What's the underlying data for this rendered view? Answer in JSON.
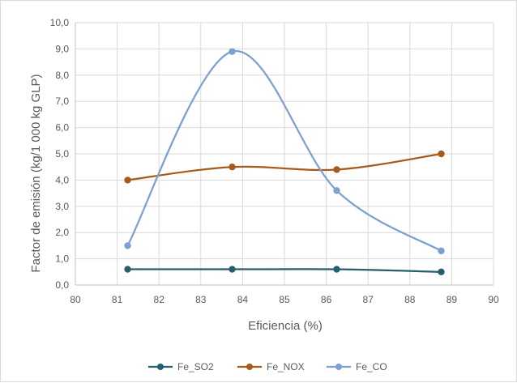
{
  "chart_data": {
    "type": "line",
    "title": "",
    "xlabel": "Eficiencia (%)",
    "ylabel": "Factor de emisión (kg/1 000 kg GLP)",
    "xlim": [
      80,
      90
    ],
    "ylim": [
      0,
      10
    ],
    "x_ticks": [
      "80",
      "81",
      "82",
      "83",
      "84",
      "85",
      "86",
      "87",
      "88",
      "89",
      "90"
    ],
    "y_ticks": [
      "0,0",
      "1,0",
      "2,0",
      "3,0",
      "4,0",
      "5,0",
      "6,0",
      "7,0",
      "8,0",
      "9,0",
      "10,0"
    ],
    "grid": "both",
    "legend_position": "bottom",
    "smoothed": true,
    "series": [
      {
        "name": "Fe_SO2",
        "color": "#255e6e",
        "x": [
          81.25,
          83.75,
          86.25,
          88.75
        ],
        "values": [
          0.6,
          0.6,
          0.6,
          0.5
        ]
      },
      {
        "name": "Fe_NOX",
        "color": "#a65a1b",
        "x": [
          81.25,
          83.75,
          86.25,
          88.75
        ],
        "values": [
          4.0,
          4.5,
          4.4,
          5.0
        ]
      },
      {
        "name": "Fe_CO",
        "color": "#7e9fd1",
        "x": [
          81.25,
          83.75,
          86.25,
          88.75
        ],
        "values": [
          1.5,
          8.9,
          3.6,
          1.3
        ]
      }
    ]
  }
}
